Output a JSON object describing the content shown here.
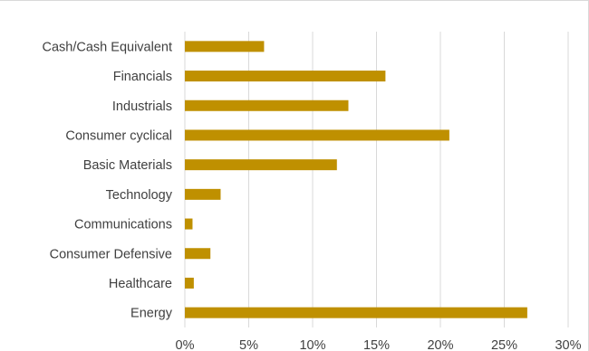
{
  "chart_data": {
    "type": "bar",
    "orientation": "horizontal",
    "categories": [
      "Cash/Cash Equivalent",
      "Financials",
      "Industrials",
      "Consumer cyclical",
      "Basic Materials",
      "Technology",
      "Communications",
      "Consumer Defensive",
      "Healthcare",
      "Energy"
    ],
    "values": [
      6.2,
      15.7,
      12.8,
      20.7,
      11.9,
      2.8,
      0.6,
      2.0,
      0.7,
      26.8
    ],
    "value_unit": "%",
    "xlim": [
      0,
      30
    ],
    "xticks": [
      "0%",
      "5%",
      "10%",
      "15%",
      "20%",
      "25%",
      "30%"
    ],
    "grid": "vertical",
    "legend": "none",
    "bar_color": "#bf9000",
    "gridline_color": "#d9d9d9",
    "title": "",
    "xlabel": "",
    "ylabel": ""
  }
}
